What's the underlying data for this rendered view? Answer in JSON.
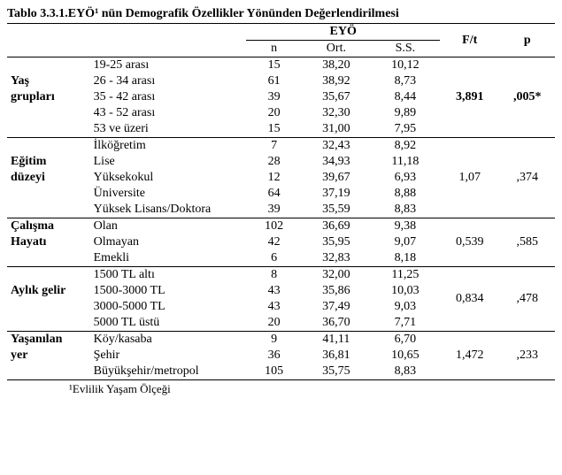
{
  "caption": "Tablo 3.3.1.EYÖ¹ nün Demografik Özellikler Yönünden Değerlendirilmesi",
  "footnote": "¹Evlilik Yaşam Ölçeği",
  "header": {
    "group": "EYÖ",
    "n": "n",
    "ort": "Ort.",
    "ss": "S.S.",
    "ft": "F/t",
    "p": "p"
  },
  "groups": [
    {
      "label_lines": [
        "Yaş",
        "grupları"
      ],
      "ft": "3,891",
      "p": ",005*",
      "ft_bold": true,
      "rows": [
        {
          "cat": "19-25 arası",
          "n": "15",
          "ort": "38,20",
          "ss": "10,12"
        },
        {
          "cat": "26 - 34 arası",
          "n": "61",
          "ort": "38,92",
          "ss": "8,73"
        },
        {
          "cat": "35 - 42 arası",
          "n": "39",
          "ort": "35,67",
          "ss": "8,44"
        },
        {
          "cat": "43 - 52 arası",
          "n": "20",
          "ort": "32,30",
          "ss": "9,89"
        },
        {
          "cat": "53 ve üzeri",
          "n": "15",
          "ort": "31,00",
          "ss": "7,95"
        }
      ]
    },
    {
      "label_lines": [
        "Eğitim",
        "düzeyi"
      ],
      "ft": "1,07",
      "p": ",374",
      "ft_bold": false,
      "rows": [
        {
          "cat": "İlköğretim",
          "n": "7",
          "ort": "32,43",
          "ss": "8,92"
        },
        {
          "cat": "Lise",
          "n": "28",
          "ort": "34,93",
          "ss": "11,18"
        },
        {
          "cat": "Yüksekokul",
          "n": "12",
          "ort": "39,67",
          "ss": "6,93"
        },
        {
          "cat": "Üniversite",
          "n": "64",
          "ort": "37,19",
          "ss": "8,88"
        },
        {
          "cat": "Yüksek Lisans/Doktora",
          "n": "39",
          "ort": "35,59",
          "ss": "8,83"
        }
      ]
    },
    {
      "label_lines": [
        "Çalışma",
        "Hayatı"
      ],
      "ft": "0,539",
      "p": ",585",
      "ft_bold": false,
      "rows": [
        {
          "cat": "Olan",
          "n": "102",
          "ort": "36,69",
          "ss": "9,38"
        },
        {
          "cat": "Olmayan",
          "n": "42",
          "ort": "35,95",
          "ss": "9,07"
        },
        {
          "cat": "Emekli",
          "n": "6",
          "ort": "32,83",
          "ss": "8,18"
        }
      ]
    },
    {
      "label_lines": [
        "Aylık gelir"
      ],
      "ft": "0,834",
      "p": ",478",
      "ft_bold": false,
      "rows": [
        {
          "cat": "1500 TL altı",
          "n": "8",
          "ort": "32,00",
          "ss": "11,25"
        },
        {
          "cat": "1500-3000 TL",
          "n": "43",
          "ort": "35,86",
          "ss": "10,03"
        },
        {
          "cat": "3000-5000 TL",
          "n": "43",
          "ort": "37,49",
          "ss": "9,03"
        },
        {
          "cat": "5000 TL üstü",
          "n": "20",
          "ort": "36,70",
          "ss": "7,71"
        }
      ]
    },
    {
      "label_lines": [
        "Yaşanılan",
        "yer"
      ],
      "ft": "1,472",
      "p": ",233",
      "ft_bold": false,
      "rows": [
        {
          "cat": "Köy/kasaba",
          "n": "9",
          "ort": "41,11",
          "ss": "6,70"
        },
        {
          "cat": "Şehir",
          "n": "36",
          "ort": "36,81",
          "ss": "10,65"
        },
        {
          "cat": "Büyükşehir/metropol",
          "n": "105",
          "ort": "35,75",
          "ss": "8,83"
        }
      ]
    }
  ],
  "colwidths": {
    "label": "90",
    "cat": "170",
    "n": "60",
    "ort": "75",
    "ss": "75",
    "ft": "65",
    "p": "60"
  }
}
